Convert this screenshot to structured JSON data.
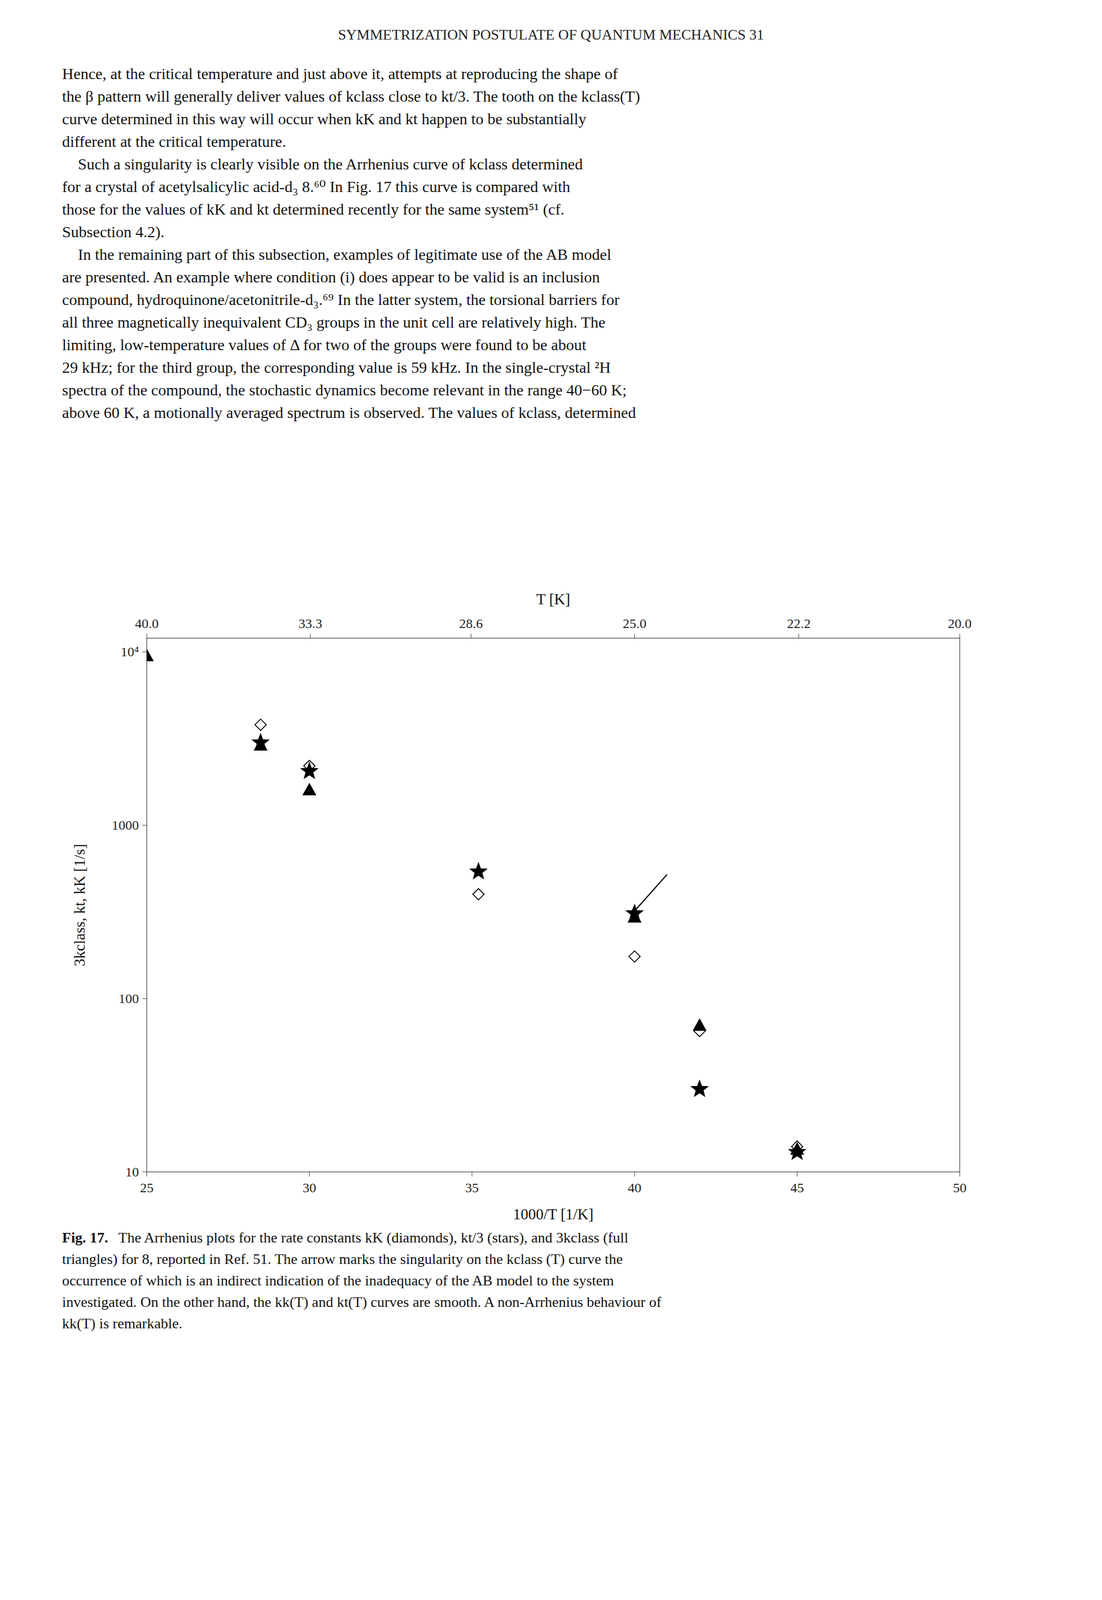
{
  "header": "SYMMETRIZATION POSTULATE OF QUANTUM MECHANICS   31",
  "body_lines": [
    "Hence, at the critical temperature and just above it, attempts at reproducing the shape of",
    "the β pattern will generally deliver values of kclass close to kt/3. The tooth on the kclass(T)",
    "curve determined in this way will occur when kK and kt happen to be substantially",
    "different at the critical temperature.",
    "    Such a singularity is clearly visible on the Arrhenius curve of kclass determined",
    "for a crystal of acetylsalicylic acid-d₃ 8.⁶⁰ In Fig. 17 this curve is compared with",
    "those for the values of kK and kt determined recently for the same system⁵¹ (cf.",
    "Subsection 4.2).",
    "    In the remaining part of this subsection, examples of legitimate use of the AB model",
    "are presented. An example where condition (i) does appear to be valid is an inclusion",
    "compound, hydroquinone/acetonitrile-d₃.⁶⁹ In the latter system, the torsional barriers for",
    "all three magnetically inequivalent CD₃ groups in the unit cell are relatively high. The",
    "limiting, low-temperature values of Δ for two of the groups were found to be about",
    "29 kHz; for the third group, the corresponding value is 59 kHz. In the single-crystal ²H",
    "spectra of the compound, the stochastic dynamics become relevant in the range 40−60 K;",
    "above 60 K, a motionally averaged spectrum is observed. The values of kclass, determined"
  ],
  "caption_label": "Fig. 17.",
  "caption_lines": [
    "The Arrhenius plots for the rate constants kK (diamonds), kt/3 (stars), and 3kclass (full",
    "triangles) for 8, reported in Ref. 51.  The arrow marks the singularity on the kclass (T) curve the",
    "occurrence of which is an indirect indication of the inadequacy of the AB model to the system",
    "investigated. On the other hand, the kk(T) and kt(T) curves are smooth. A non-Arrhenius behaviour of",
    "kk(T) is remarkable."
  ],
  "chart_data": {
    "type": "scatter",
    "log": "y",
    "grid": false,
    "x_label": "1000/T [1/K]",
    "y_label": "3kclass, kt, kK [1/s]",
    "x2_label": "T [K]",
    "xlim": [
      25,
      50
    ],
    "xticks": [
      25,
      30,
      35,
      40,
      45,
      50
    ],
    "x2lim": [
      25,
      50
    ],
    "x2ticks": [
      {
        "value": 25.0,
        "label": "40.0"
      },
      {
        "value": 30.03,
        "label": "33.3"
      },
      {
        "value": 34.97,
        "label": "28.6"
      },
      {
        "value": 40.0,
        "label": "25.0"
      },
      {
        "value": 45.05,
        "label": "22.2"
      },
      {
        "value": 50.0,
        "label": "20.0"
      }
    ],
    "ylim": [
      10,
      12000
    ],
    "yticks": [
      10,
      100,
      1000,
      {
        "value": 10000,
        "label": "10⁴"
      }
    ],
    "series": [
      {
        "marker": "open-diamond",
        "color": "#000000",
        "x": [
          28.5,
          30.0,
          35.2,
          40.0,
          42.0,
          45.0
        ],
        "values": [
          3800,
          2200,
          400,
          175,
          65,
          14
        ]
      },
      {
        "marker": "star",
        "color": "#000000",
        "x": [
          28.5,
          30.0,
          35.2,
          40.0,
          42.0,
          45.0
        ],
        "values": [
          3000,
          2050,
          540,
          310,
          30,
          13
        ]
      },
      {
        "marker": "triangle",
        "color": "#000000",
        "x": [
          25.0,
          28.5,
          30.0,
          40.0,
          42.0,
          45.0
        ],
        "values": [
          9500,
          2900,
          1600,
          295,
          70,
          13.5
        ]
      }
    ],
    "arrows": [
      {
        "x": 41.0,
        "y": 520,
        "x_end": 39.9,
        "y_end": 305,
        "color": "#000000"
      }
    ]
  }
}
